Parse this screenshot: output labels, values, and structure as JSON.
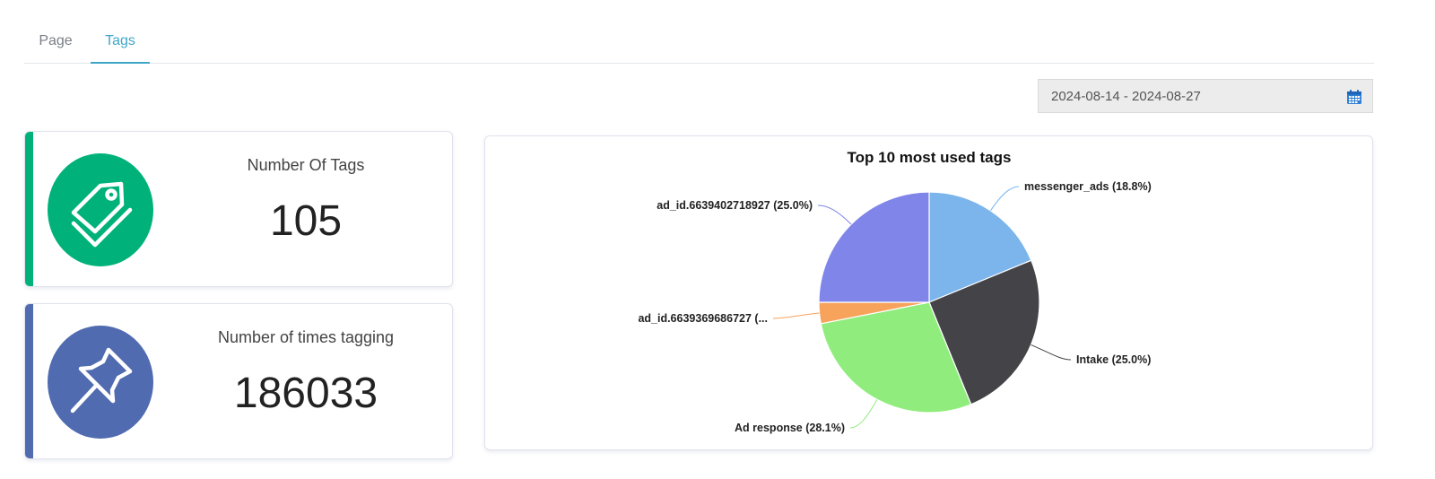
{
  "tabs": [
    {
      "label": "Page",
      "active": false
    },
    {
      "label": "Tags",
      "active": true
    }
  ],
  "date_range": {
    "value": "2024-08-14 - 2024-08-27",
    "icon": "calendar-icon"
  },
  "stats": [
    {
      "label": "Number Of Tags",
      "value": "105",
      "icon": "tags-icon",
      "color": "#00b27a"
    },
    {
      "label": "Number of times tagging",
      "value": "186033",
      "icon": "pushpin-icon",
      "color": "#506bb0"
    }
  ],
  "chart_data": {
    "type": "pie",
    "title": "Top 10 most used tags",
    "slices": [
      {
        "name": "messenger_ads",
        "label": "messenger_ads (18.8%)",
        "value": 18.8,
        "color": "#7cb5ec"
      },
      {
        "name": "Intake",
        "label": "Intake (25.0%)",
        "value": 25.0,
        "color": "#434348"
      },
      {
        "name": "Ad response",
        "label": "Ad response (28.1%)",
        "value": 28.1,
        "color": "#90ed7d"
      },
      {
        "name": "ad_id.6639369686727",
        "label": "ad_id.6639369686727 (...",
        "value": 3.1,
        "color": "#f7a35c"
      },
      {
        "name": "ad_id.6639402718927",
        "label": "ad_id.6639402718927 (25.0%)",
        "value": 25.0,
        "color": "#8085e9"
      }
    ]
  }
}
